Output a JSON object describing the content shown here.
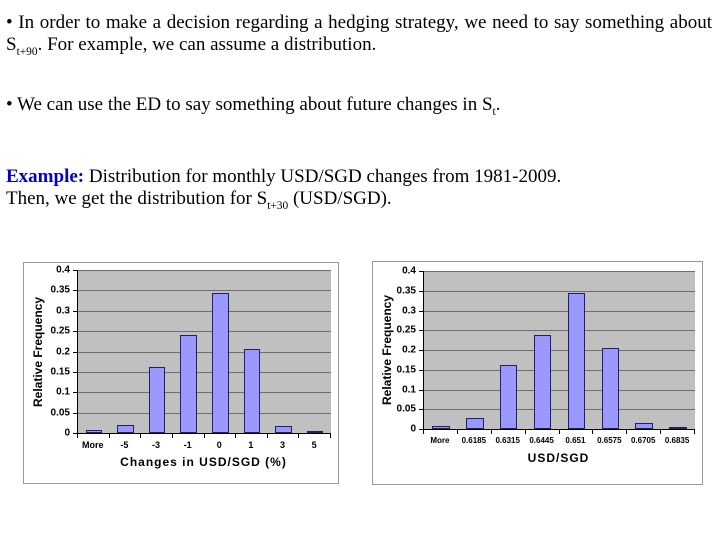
{
  "slide": {
    "background": "#ffffff"
  },
  "colors": {
    "text": "#000000",
    "example_label": "#0000cc"
  },
  "paragraphs": {
    "bullet1": {
      "pre": "• In order to make a decision regarding a hedging strategy, we need to say something about S",
      "sub": "t+90",
      "post": ". For example, we can assume a distribution."
    },
    "bullet2": {
      "pre": "• We can use the ED to say something about future changes in S",
      "sub": "t",
      "post": "."
    },
    "example": {
      "label": "Example:",
      "line1": " Distribution for monthly USD/SGD changes from 1981-2009.",
      "line2_pre": "Then, we get the distribution for S",
      "sub": "t+30",
      "line2_post": " (USD/SGD)."
    }
  },
  "chart_data": [
    {
      "type": "bar",
      "title": "",
      "categories": [
        "More",
        "-5",
        "-3",
        "-1",
        "0",
        "1",
        "3",
        "5"
      ],
      "values": [
        0.008,
        0.02,
        0.162,
        0.24,
        0.343,
        0.205,
        0.018,
        0.005
      ],
      "xlabel": "Changes in USD/SGD (%)",
      "ylabel": "Relative Frequency",
      "ylim": [
        0,
        0.4
      ],
      "yticks": [
        "0.4",
        "0.35",
        "0.3",
        "0.25",
        "0.2",
        "0.15",
        "0.1",
        "0.05",
        "0"
      ],
      "grid": true,
      "legend": "none",
      "plot_bg": "#c0c0c0",
      "gridline_color": "#6e6e6e",
      "bar_color": "#9999ff",
      "bar_border": "#202060"
    },
    {
      "type": "bar",
      "title": "",
      "categories": [
        "More",
        "0.6185",
        "0.6315",
        "0.6445",
        "0.651",
        "0.6575",
        "0.6705",
        "0.6835"
      ],
      "values": [
        0.007,
        0.029,
        0.163,
        0.239,
        0.345,
        0.204,
        0.016,
        0.005
      ],
      "xlabel": "USD/SGD",
      "ylabel": "Relative Frequency",
      "ylim": [
        0,
        0.4
      ],
      "yticks": [
        "0.4",
        "0.35",
        "0.3",
        "0.25",
        "0.2",
        "0.15",
        "0.1",
        "0.05",
        "0"
      ],
      "grid": true,
      "legend": "none",
      "plot_bg": "#c0c0c0",
      "gridline_color": "#6e6e6e",
      "bar_color": "#9999ff",
      "bar_border": "#202060"
    }
  ]
}
